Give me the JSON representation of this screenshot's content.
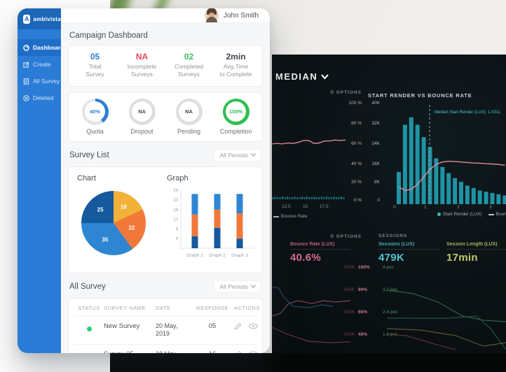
{
  "survey_app": {
    "brand": "ambivista",
    "sidebar": {
      "items": [
        {
          "label": "Dashboard",
          "active": true
        },
        {
          "label": "Create",
          "active": false
        },
        {
          "label": "All Survey",
          "active": false
        },
        {
          "label": "Deleted",
          "active": false
        }
      ]
    },
    "topbar": {
      "user": "John Smith"
    },
    "page_title": "Campaign Dashboard",
    "stats": [
      {
        "value": "05",
        "label1": "Total",
        "label2": "Survey",
        "color": "#2d7dd2"
      },
      {
        "value": "NA",
        "label1": "Incomplete",
        "label2": "Surveys",
        "color": "#e8445a"
      },
      {
        "value": "02",
        "label1": "Completed",
        "label2": "Surveys",
        "color": "#3dbb61"
      },
      {
        "value": "2min",
        "label1": "Avg.Time",
        "label2": "to Complete",
        "color": "#3f464d"
      }
    ],
    "rings": [
      {
        "value": "40%",
        "label": "Quota",
        "pct": 40,
        "arc_color": "#2d7dd2",
        "text_color": "#2d7dd2"
      },
      {
        "value": "NA",
        "label": "Dropout",
        "pct": 100,
        "arc_color": "#dcdee0",
        "text_color": "#3f464d"
      },
      {
        "value": "NA",
        "label": "Pending",
        "pct": 100,
        "arc_color": "#dcdee0",
        "text_color": "#3f464d"
      },
      {
        "value": "100%",
        "label": "Completion",
        "pct": 100,
        "arc_color": "#2fbf4f",
        "text_color": "#2fbf4f"
      }
    ],
    "survey_list": {
      "title": "Survey List",
      "filter": "All Periods",
      "chart_title": "Chart",
      "graph_title": "Graph"
    },
    "all_survey": {
      "title": "All Survey",
      "filter": "All Periods",
      "columns": [
        "STATUS",
        "SURVEY NAME",
        "DATE",
        "RESPONSE",
        "ACTIONS"
      ],
      "rows": [
        {
          "status_color": "#2ecc71",
          "name": "New Survey",
          "date1": "20 May,",
          "date2": "2019",
          "response": "05"
        },
        {
          "status_color": "#2ecc71",
          "name": "Survey 05",
          "date1": "18 May,",
          "date2": "2019",
          "response": "16"
        }
      ]
    }
  },
  "lux_dashboard": {
    "title": "MEDIAN",
    "panel_a": {
      "header": "OPTIONS",
      "legend": "Bounce Rate"
    },
    "panel_b": {
      "title": "START RENDER VS BOUNCE RATE",
      "median_label": "Median Start Render (LUX): 1.031s",
      "legend_bar": "Start Render (LUX)",
      "legend_line": "Bounce Rate"
    },
    "kpi": {
      "header_options": "OPTIONS",
      "header_sessions": "SESSIONS",
      "cards": [
        {
          "label": "Bounce Rate (LUX)",
          "value": "40.6%",
          "color": "#d76d8c"
        },
        {
          "label": "Sessions (LUX)",
          "value": "479K",
          "color": "#56c3cd"
        },
        {
          "label": "Session Length (LUX)",
          "value": "17min",
          "color": "#bfcc66"
        }
      ]
    },
    "axis_rows": [
      {
        "k": "500K",
        "pct": "100%",
        "pvs": "4 pvs"
      },
      {
        "k": "400K",
        "pct": "80%",
        "pvs": "3.2 pvs"
      },
      {
        "k": "300K",
        "pct": "60%",
        "pvs": "2.4 pvs"
      },
      {
        "k": "200K",
        "pct": "40%",
        "pvs": "1.6 pvs"
      }
    ]
  },
  "chart_data": [
    {
      "id": "survey-pie",
      "type": "pie",
      "title": "Chart",
      "slices": [
        {
          "label": "18",
          "value": 18,
          "color": "#f2b239"
        },
        {
          "label": "22",
          "value": 22,
          "color": "#f2783a"
        },
        {
          "label": "35",
          "value": 35,
          "color": "#2e86d3"
        },
        {
          "label": "25",
          "value": 25,
          "color": "#15599f"
        }
      ]
    },
    {
      "id": "survey-stacked-bar",
      "type": "bar",
      "title": "Graph",
      "categories": [
        "Graph 1",
        "Graph 2",
        "Graph 3"
      ],
      "y_ticks": [
        24,
        20,
        16,
        12,
        8,
        4
      ],
      "ylim": [
        0,
        24
      ],
      "series": [
        {
          "name": "segment-bottom",
          "color": "#15599f",
          "values": [
            5,
            8.5,
            4
          ]
        },
        {
          "name": "segment-middle",
          "color": "#f2783a",
          "values": [
            9,
            7.5,
            10.5
          ]
        },
        {
          "name": "segment-top",
          "color": "#2e86d3",
          "values": [
            8.5,
            6.5,
            8
          ]
        }
      ]
    },
    {
      "id": "lux-bounce-rate-line",
      "type": "line",
      "y_ticks": [
        "100 %",
        "80 %",
        "60 %",
        "40 %",
        "20 %",
        "0 %"
      ],
      "x_ticks": [
        "12.5",
        "15",
        "17.5"
      ],
      "ylim": [
        0,
        100
      ],
      "legend": "Bounce Rate",
      "series": [
        {
          "name": "Bounce Rate",
          "color": "#dd8c9c",
          "values": [
            57,
            57.5,
            57,
            58,
            57.5,
            58.5,
            60.5,
            60.5,
            57.5,
            58,
            60,
            60,
            61,
            60.5,
            61
          ]
        }
      ],
      "mini_bars": {
        "color": "#1d7f8c",
        "values": [
          3,
          4,
          3,
          3,
          4,
          3,
          4,
          3,
          3,
          4,
          3,
          3,
          4,
          3,
          4,
          3,
          3,
          4,
          3,
          3,
          4,
          3,
          4,
          3,
          3,
          4,
          3,
          3,
          4,
          3
        ]
      }
    },
    {
      "id": "lux-start-render-histogram",
      "type": "bar",
      "title": "START RENDER VS BOUNCE RATE",
      "y_ticks": [
        "40K",
        "32K",
        "24K",
        "16K",
        "8K",
        "0"
      ],
      "x_ticks": [
        "0",
        "1",
        "2",
        "3"
      ],
      "ylim_k": [
        0,
        40
      ],
      "bar_color": "#1f93a3",
      "values_k": [
        13,
        32,
        35,
        32,
        27,
        23,
        18.5,
        15,
        12.5,
        10.5,
        9,
        7.5,
        6.5,
        5.5,
        5,
        4.5,
        4,
        3.5
      ],
      "median_line_label": "Median Start Render (LUX): 1.031s",
      "line": {
        "name": "Bounce Rate",
        "color": "#dd8c9c",
        "values_k": [
          7,
          5.5,
          6,
          8,
          11,
          14,
          16,
          17,
          17.3,
          17.2,
          17,
          16.8,
          16.6,
          16.5,
          16.3,
          16.2,
          16,
          15.7
        ]
      }
    },
    {
      "id": "lux-trend-sparklines",
      "type": "line",
      "series": [
        {
          "name": "bounce-rate-trend-upper",
          "color": "#8a4a58",
          "points": [
            [
              0,
              84
            ],
            [
              12,
              80
            ],
            [
              24,
              66
            ],
            [
              37,
              62
            ],
            [
              57,
              66
            ],
            [
              74,
              62
            ],
            [
              90,
              64
            ],
            [
              112,
              62
            ]
          ]
        },
        {
          "name": "bounce-rate-trend-lower",
          "color": "#6e3a46",
          "points": [
            [
              0,
              100
            ],
            [
              22,
              110
            ],
            [
              52,
              120
            ],
            [
              82,
              122
            ],
            [
              112,
              121
            ]
          ]
        },
        {
          "name": "sessions-trend-blue",
          "color": "#27506e",
          "points": [
            [
              0,
              42
            ],
            [
              10,
              44
            ],
            [
              17,
              57
            ],
            [
              30,
              70
            ],
            [
              52,
              72
            ],
            [
              72,
              68
            ],
            [
              87,
              70
            ]
          ]
        },
        {
          "name": "sessions-trend-green",
          "color": "#2e6b4f",
          "points": [
            [
              164,
              47
            ],
            [
              202,
              52
            ],
            [
              237,
              64
            ],
            [
              272,
              84
            ],
            [
              302,
              90
            ],
            [
              334,
              92
            ]
          ]
        },
        {
          "name": "session-length-trend",
          "color": "#27584a",
          "points": [
            [
              164,
              87
            ],
            [
              252,
              87
            ],
            [
              292,
              84
            ],
            [
              312,
              102
            ],
            [
              334,
              132
            ]
          ]
        },
        {
          "name": "session-length-trend-2",
          "color": "#5a6436",
          "points": [
            [
              164,
              102
            ],
            [
              212,
              104
            ],
            [
              262,
              112
            ],
            [
              302,
              127
            ],
            [
              334,
              122
            ]
          ]
        },
        {
          "name": "bounce-trend-right",
          "color": "#5e3340",
          "points": [
            [
              164,
              110
            ],
            [
              192,
              112
            ],
            [
              232,
              124
            ],
            [
              262,
              132
            ]
          ]
        }
      ]
    }
  ]
}
